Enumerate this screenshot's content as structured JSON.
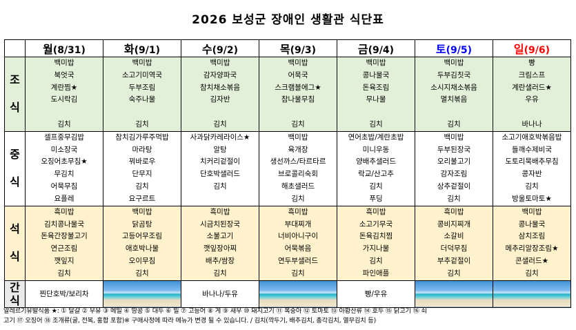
{
  "title": "2026 보성군 장애인 생활관 식단표",
  "days": [
    {
      "name": "월",
      "date": "(8/31)",
      "color": "#000000"
    },
    {
      "name": "화",
      "date": "(9/1)",
      "color": "#000000"
    },
    {
      "name": "수",
      "date": "(9/2)",
      "color": "#000000"
    },
    {
      "name": "목",
      "date": "(9/3)",
      "color": "#000000"
    },
    {
      "name": "금",
      "date": "(9/4)",
      "color": "#000000"
    },
    {
      "name": "토",
      "date": "(9/5)",
      "color": "#0000ff"
    },
    {
      "name": "일",
      "date": "(9/6)",
      "color": "#ff0000"
    }
  ],
  "meals": {
    "breakfast": {
      "label": "조식",
      "items": [
        [
          "백미밥",
          "북엇국",
          "계란찜★",
          "도시락김",
          "",
          "김치"
        ],
        [
          "백미밥",
          "소고기미역국",
          "두부조림",
          "숙주나물",
          "",
          "김치"
        ],
        [
          "백미밥",
          "감자양파국",
          "참치채소볶음",
          "김자반",
          "",
          "김치"
        ],
        [
          "백미밥",
          "어묵국",
          "스크램블에그★",
          "참나물무침",
          "",
          "김치"
        ],
        [
          "백미밥",
          "콩나물국",
          "돈육조림",
          "무나물",
          "",
          "김치"
        ],
        [
          "백미밥",
          "두부김칫국",
          "소시지채소볶음",
          "멸치볶음",
          "",
          "김치"
        ],
        [
          "빵",
          "크림스프",
          "계란샐러드★",
          "우유",
          "",
          "바나나"
        ]
      ]
    },
    "lunch": {
      "label": "중식",
      "items": [
        [
          "셀프중무김밥",
          "미소장국",
          "오징어초무침★",
          "무김치",
          "어묵무침",
          "요플레"
        ],
        [
          "참치김가루주먹밥",
          "마라탕",
          "꿔바로우",
          "단무지",
          "김치",
          "요구르트"
        ],
        [
          "사과닭카레라이스★",
          "알탕",
          "치커리겉절이",
          "단호박샐러드",
          "김치",
          ""
        ],
        [
          "백미밥",
          "육개장",
          "생선까스/타르타르",
          "브로콜리숙회",
          "해초샐러드",
          "김치"
        ],
        [
          "연어초밥/계란초밥",
          "미니우동",
          "양배추샐러드",
          "락교/산고추",
          "김치",
          "푸딩"
        ],
        [
          "백미밥",
          "두부된장국",
          "오리불고기",
          "감자조림",
          "상추겉절이",
          "김치"
        ],
        [
          "소고기애호박볶음밥",
          "들깨수제비국",
          "도토리묵배추무침",
          "콩자반",
          "김치",
          "방울토마토★"
        ]
      ]
    },
    "dinner": {
      "label": "석식",
      "items": [
        [
          "흑미밥",
          "김치콩나물국",
          "돈육간장불고기",
          "연근조림",
          "깻잎지",
          "김치"
        ],
        [
          "백미밥",
          "닭곰탕",
          "고등어무조림",
          "애호박나물",
          "오이무침",
          "김치"
        ],
        [
          "흑미밥",
          "시금치된장국",
          "소불고기",
          "깻잎장아찌",
          "배추/쌈장",
          "김치"
        ],
        [
          "흑미밥",
          "부대찌개",
          "너비아니구이",
          "어묵볶음",
          "연두부샐러드",
          "김치"
        ],
        [
          "흑미밥",
          "소고기무국",
          "돈육김치찜",
          "가지나물",
          "김치",
          "파인애플"
        ],
        [
          "흑미밥",
          "콩비지찌개",
          "소갈비",
          "더덕무침",
          "부추겉절이",
          "김치"
        ],
        [
          "백미밥",
          "콩나물국",
          "삼치조림",
          "메추리알장조림★",
          "콘샐러드★",
          "김치"
        ]
      ]
    },
    "snack": {
      "label": "간식",
      "items": [
        "찐단호박/보리차",
        "",
        "바나나/두유",
        "",
        "빵/우유",
        "",
        ""
      ]
    }
  },
  "footer": {
    "line1": "알레르기유발식품 ★: ① 달걀 ② 우유 ③ 메밀 ④ 땅콩 ⑤ 대두 ⑥ 밀 ⑦ 고등어 ⑧ 게 ⑨ 새우 ⑩ 돼지고기 ⑪ 복숭아 ⑫ 토마토 ⑬ 아황산류 ⑭ 호두 ⑮ 닭고기 ⑯ 쇠",
    "line2": "고기 ⑰ 오징어 ⑱ 조개류(굴, 전복, 홍합 포함)※ 구매사정에 따라 메뉴가 변경 될 수 있습니다.   / 김치(깍두기, 배추김치, 총각김치, 열무김치 등)"
  }
}
